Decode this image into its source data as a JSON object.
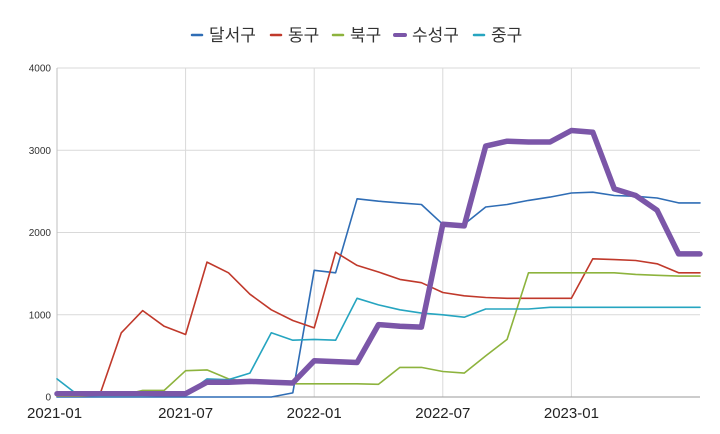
{
  "chart_data": {
    "type": "line",
    "title": "",
    "xlabel": "",
    "ylabel": "",
    "ylim": [
      0,
      4000
    ],
    "yticks": [
      "0",
      "1000",
      "2000",
      "3000",
      "4000"
    ],
    "xticks": [
      "2021-01",
      "2021-07",
      "2022-01",
      "2022-07",
      "2023-01"
    ],
    "grid": true,
    "legend_position": "top",
    "x": [
      "2021-01",
      "2021-02",
      "2021-03",
      "2021-04",
      "2021-05",
      "2021-06",
      "2021-07",
      "2021-08",
      "2021-09",
      "2021-10",
      "2021-11",
      "2021-12",
      "2022-01",
      "2022-02",
      "2022-03",
      "2022-04",
      "2022-05",
      "2022-06",
      "2022-07",
      "2022-08",
      "2022-09",
      "2022-10",
      "2022-11",
      "2022-12",
      "2023-01",
      "2023-02",
      "2023-03",
      "2023-04",
      "2023-05",
      "2023-06",
      "2023-07"
    ],
    "series": [
      {
        "name": "달서구",
        "color": "#2f6db5",
        "values": [
          0,
          0,
          0,
          0,
          0,
          0,
          0,
          0,
          0,
          0,
          0,
          50,
          1540,
          1510,
          2410,
          2380,
          2360,
          2340,
          2100,
          2100,
          2310,
          2340,
          2390,
          2430,
          2480,
          2490,
          2450,
          2440,
          2420,
          2360,
          2360
        ]
      },
      {
        "name": "동구",
        "color": "#c0392b",
        "values": [
          30,
          30,
          30,
          780,
          1050,
          860,
          760,
          1640,
          1510,
          1250,
          1060,
          930,
          840,
          1760,
          1600,
          1520,
          1430,
          1390,
          1270,
          1230,
          1210,
          1200,
          1200,
          1200,
          1200,
          1680,
          1670,
          1660,
          1620,
          1510,
          1510
        ]
      },
      {
        "name": "북구",
        "color": "#8db33d",
        "values": [
          10,
          10,
          20,
          20,
          80,
          80,
          320,
          330,
          220,
          180,
          160,
          160,
          160,
          160,
          160,
          155,
          360,
          360,
          310,
          290,
          500,
          700,
          1510,
          1510,
          1510,
          1510,
          1510,
          1490,
          1480,
          1470,
          1470
        ]
      },
      {
        "name": "수성구",
        "color": "#7b56a8",
        "values": [
          40,
          40,
          40,
          40,
          40,
          40,
          40,
          180,
          180,
          190,
          180,
          170,
          440,
          430,
          420,
          880,
          860,
          850,
          2100,
          2080,
          3050,
          3110,
          3100,
          3100,
          3240,
          3220,
          2530,
          2450,
          2270,
          1740,
          1740
        ]
      },
      {
        "name": "중구",
        "color": "#26a5c0",
        "values": [
          220,
          20,
          10,
          10,
          10,
          20,
          30,
          220,
          210,
          290,
          780,
          690,
          700,
          690,
          1200,
          1120,
          1060,
          1020,
          1000,
          970,
          1070,
          1070,
          1070,
          1090,
          1090,
          1090,
          1090,
          1090,
          1090,
          1090,
          1090
        ]
      }
    ],
    "series_styles": [
      {
        "stroke_weight": "thin"
      },
      {
        "stroke_weight": "thin"
      },
      {
        "stroke_weight": "thin"
      },
      {
        "stroke_weight": "bold"
      },
      {
        "stroke_weight": "thin"
      }
    ]
  }
}
